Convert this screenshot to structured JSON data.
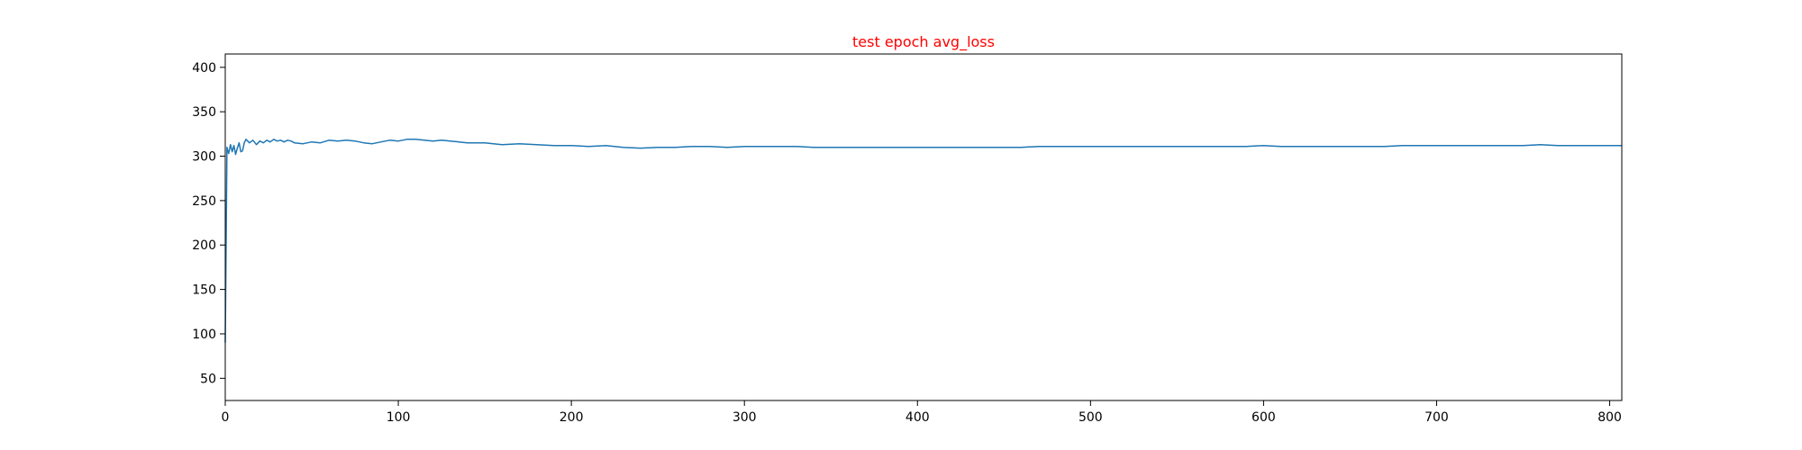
{
  "chart_data": {
    "type": "line",
    "title": "test epoch avg_loss",
    "title_color": "#ff0000",
    "xlabel": "",
    "ylabel": "",
    "xlim": [
      0,
      807
    ],
    "ylim": [
      25,
      415
    ],
    "xticks": [
      0,
      100,
      200,
      300,
      400,
      500,
      600,
      700,
      800
    ],
    "yticks": [
      50,
      100,
      150,
      200,
      250,
      300,
      350,
      400
    ],
    "grid": false,
    "legend": false,
    "line_color": "#1f77b4",
    "series": [
      {
        "x": [
          0,
          1,
          2,
          3,
          4,
          5,
          6,
          7,
          8,
          9,
          10,
          11,
          12,
          14,
          16,
          18,
          20,
          22,
          24,
          26,
          28,
          30,
          32,
          34,
          36,
          38,
          40,
          45,
          50,
          55,
          60,
          65,
          70,
          75,
          80,
          85,
          90,
          95,
          100,
          105,
          110,
          115,
          120,
          125,
          130,
          135,
          140,
          150,
          160,
          170,
          180,
          190,
          200,
          210,
          220,
          230,
          240,
          250,
          260,
          270,
          280,
          290,
          300,
          310,
          320,
          330,
          340,
          350,
          360,
          370,
          380,
          390,
          400,
          410,
          420,
          430,
          440,
          450,
          460,
          470,
          480,
          490,
          500,
          510,
          520,
          530,
          540,
          550,
          560,
          570,
          580,
          590,
          600,
          610,
          620,
          630,
          640,
          650,
          660,
          670,
          680,
          690,
          700,
          710,
          720,
          730,
          740,
          750,
          760,
          770,
          780,
          790,
          800,
          807
        ],
        "y": [
          90,
          310,
          303,
          313,
          305,
          312,
          302,
          309,
          315,
          305,
          306,
          315,
          319,
          315,
          318,
          313,
          317,
          315,
          318,
          316,
          319,
          317,
          318,
          316,
          318,
          317,
          315,
          314,
          316,
          315,
          318,
          317,
          318,
          317,
          315,
          314,
          316,
          318,
          317,
          319,
          319,
          318,
          317,
          318,
          317,
          316,
          315,
          315,
          313,
          314,
          313,
          312,
          312,
          311,
          312,
          310,
          309,
          310,
          310,
          311,
          311,
          310,
          311,
          311,
          311,
          311,
          310,
          310,
          310,
          310,
          310,
          310,
          310,
          310,
          310,
          310,
          310,
          310,
          310,
          311,
          311,
          311,
          311,
          311,
          311,
          311,
          311,
          311,
          311,
          311,
          311,
          311,
          312,
          311,
          311,
          311,
          311,
          311,
          311,
          311,
          312,
          312,
          312,
          312,
          312,
          312,
          312,
          312,
          313,
          312,
          312,
          312,
          312,
          312
        ]
      }
    ]
  }
}
